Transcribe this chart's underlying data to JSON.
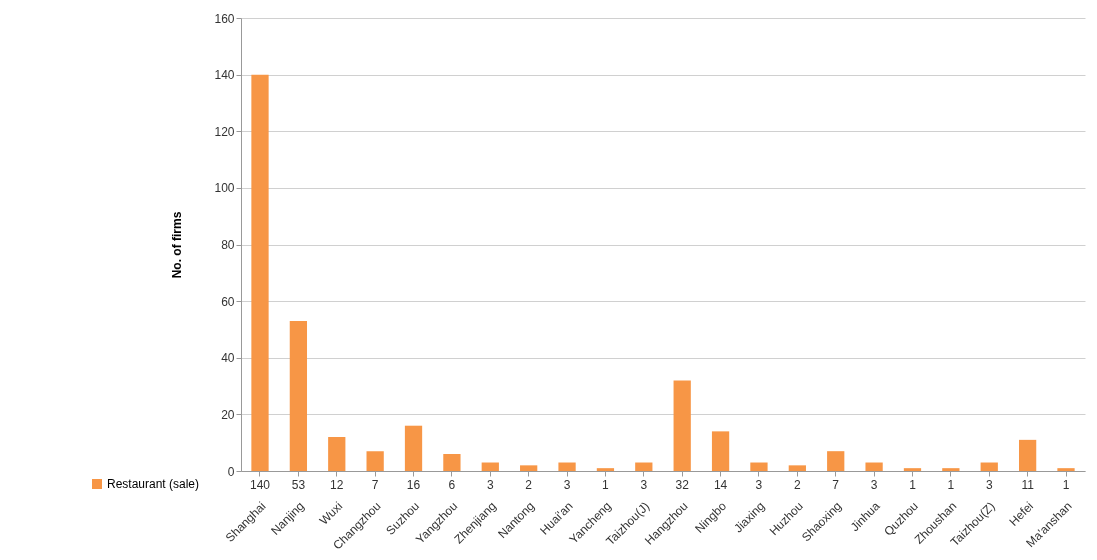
{
  "chart_data": {
    "type": "bar",
    "ylabel": "No. of firms",
    "categories": [
      "Shanghai",
      "Nanjing",
      "Wuxi",
      "Changzhou",
      "Suzhou",
      "Yangzhou",
      "Zhenjiang",
      "Nantong",
      "Huai'an",
      "Yancheng",
      "Taizhou(J)",
      "Hangzhou",
      "Ningbo",
      "Jiaxing",
      "Huzhou",
      "Shaoxing",
      "Jinhua",
      "Quzhou",
      "Zhoushan",
      "Taizhou(Z)",
      "Hefei",
      "Ma'anshan"
    ],
    "series": [
      {
        "name": "Restaurant (sale)",
        "color": "#f79646",
        "values": [
          140,
          53,
          12,
          7,
          16,
          6,
          3,
          2,
          3,
          1,
          3,
          32,
          14,
          3,
          2,
          7,
          3,
          1,
          1,
          3,
          11,
          1
        ]
      }
    ],
    "ylim": [
      0,
      160
    ],
    "yticks": [
      0,
      20,
      40,
      60,
      80,
      100,
      120,
      140,
      160
    ],
    "grid": "y",
    "legend": "bottom left",
    "data_labels": true
  }
}
